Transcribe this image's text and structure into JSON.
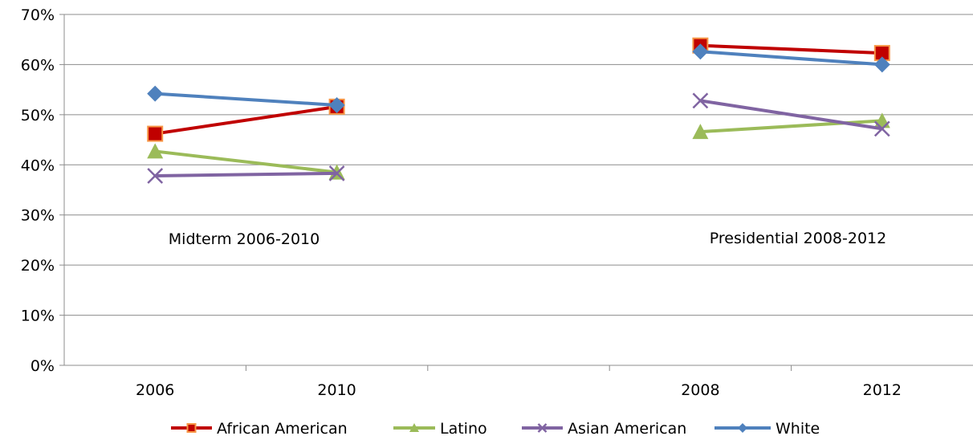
{
  "chart_data": {
    "type": "line",
    "categories": [
      "2006",
      "2010",
      "",
      "2008",
      "2012"
    ],
    "ylim": [
      0,
      70
    ],
    "yticks": [
      "0%",
      "10%",
      "20%",
      "30%",
      "40%",
      "50%",
      "60%",
      "70%"
    ],
    "grid": true,
    "legend_position": "bottom",
    "annotations": [
      "Midterm 2006-2010",
      "Presidential 2008-2012"
    ],
    "series": [
      {
        "name": "African American",
        "color": "#C00000",
        "marker": "square",
        "values": [
          46.2,
          51.6,
          null,
          63.8,
          62.3
        ]
      },
      {
        "name": "Latino",
        "color": "#9BBB59",
        "marker": "triangle",
        "values": [
          42.7,
          38.5,
          null,
          46.6,
          48.8
        ]
      },
      {
        "name": "Asian American",
        "color": "#8064A2",
        "marker": "x",
        "values": [
          37.8,
          38.3,
          null,
          52.8,
          47.2
        ]
      },
      {
        "name": "White",
        "color": "#4F81BD",
        "marker": "diamond",
        "values": [
          54.2,
          51.9,
          null,
          62.6,
          60.0
        ]
      }
    ]
  }
}
